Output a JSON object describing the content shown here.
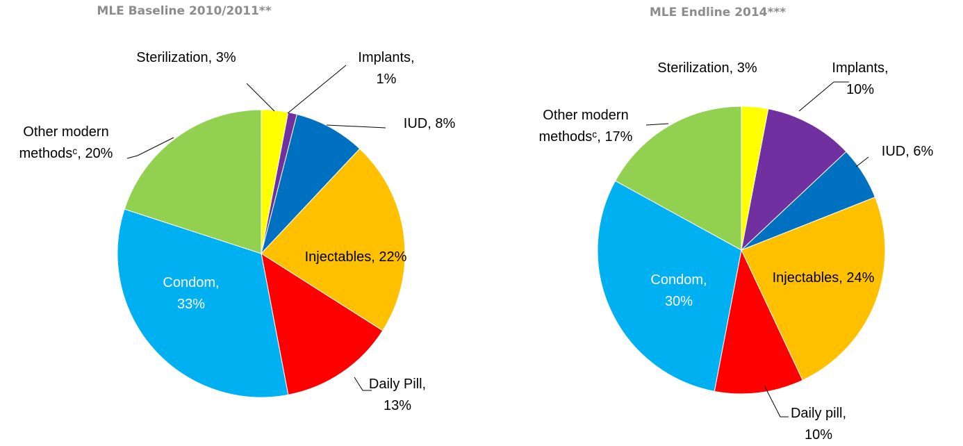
{
  "chart_data": [
    {
      "type": "pie",
      "title": "MLE Baseline 2010/2011**",
      "categories": [
        "Sterilization,",
        "Implants,",
        "IUD,",
        "Injectables,",
        "Daily Pill,",
        "Condom,",
        "Other modern methodsᶜ,"
      ],
      "values": [
        3,
        1,
        8,
        22,
        13,
        33,
        20
      ],
      "value_labels": [
        "3%",
        "1%",
        "8%",
        "22%",
        "13%",
        "33%",
        "20%"
      ],
      "colors": [
        "#ffff00",
        "#7030a0",
        "#0070c0",
        "#ffc000",
        "#ff0000",
        "#00b0f0",
        "#92d050"
      ]
    },
    {
      "type": "pie",
      "title": "MLE Endline 2014***",
      "categories": [
        "Sterilization,",
        "Implants,",
        "IUD,",
        "Injectables,",
        "Daily pill,",
        "Condom,",
        "Other modern methodsᶜ,"
      ],
      "values": [
        3,
        10,
        6,
        24,
        10,
        30,
        17
      ],
      "value_labels": [
        "3%",
        "10%",
        "6%",
        "24%",
        "10%",
        "30%",
        "17%"
      ],
      "colors": [
        "#ffff00",
        "#7030a0",
        "#0070c0",
        "#ffc000",
        "#ff0000",
        "#00b0f0",
        "#92d050"
      ]
    }
  ]
}
